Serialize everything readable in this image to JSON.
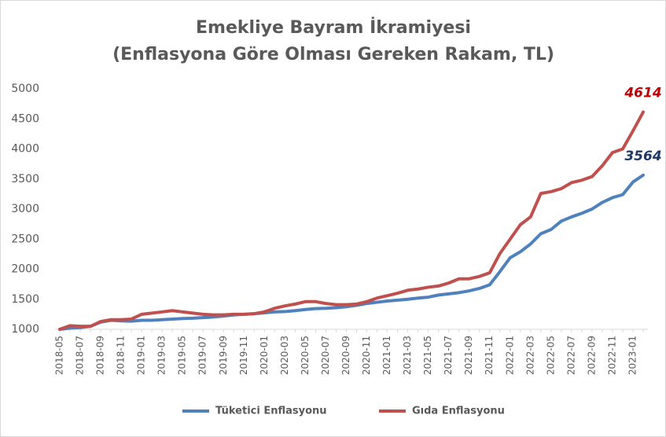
{
  "chart_data": {
    "type": "line",
    "title": "Emekliye Bayram İkramiyesi",
    "subtitle": "(Enflasyona Göre Olması Gereken Rakam, TL)",
    "categories": [
      "2018-05",
      null,
      "2018-07",
      null,
      "2018-09",
      null,
      "2018-11",
      null,
      "2019-01",
      null,
      "2019-03",
      null,
      "2019-05",
      null,
      "2019-07",
      null,
      "2019-09",
      null,
      "2019-11",
      null,
      "2020-01",
      null,
      "2020-03",
      null,
      "2020-05",
      null,
      "2020-07",
      null,
      "2020-09",
      null,
      "2020-11",
      null,
      "2021-01",
      null,
      "2021-03",
      null,
      "2021-05",
      null,
      "2021-07",
      null,
      "2021-09",
      null,
      "2021-11",
      null,
      "2022-01",
      null,
      "2022-03",
      null,
      "2022-05",
      null,
      "2022-07",
      null,
      "2022-09",
      null,
      "2022-11",
      null,
      "2023-01",
      null
    ],
    "series": [
      {
        "name": "Tüketici Enflasyonu",
        "color": "#4f81bd",
        "label_color": "#1f3864",
        "values": [
          1000,
          1020,
          1030,
          1050,
          1120,
          1150,
          1140,
          1135,
          1150,
          1150,
          1160,
          1170,
          1180,
          1185,
          1195,
          1205,
          1220,
          1240,
          1250,
          1260,
          1275,
          1290,
          1295,
          1310,
          1330,
          1345,
          1350,
          1360,
          1375,
          1400,
          1430,
          1450,
          1470,
          1485,
          1500,
          1520,
          1535,
          1570,
          1590,
          1610,
          1640,
          1680,
          1740,
          1960,
          2190,
          2290,
          2420,
          2590,
          2660,
          2800,
          2870,
          2930,
          3000,
          3110,
          3190,
          3240,
          3450,
          3564
        ]
      },
      {
        "name": "Gıda Enflasyonu",
        "color": "#c0504d",
        "label_color": "#c00000",
        "values": [
          1000,
          1060,
          1050,
          1050,
          1130,
          1160,
          1160,
          1170,
          1250,
          1270,
          1290,
          1310,
          1290,
          1270,
          1250,
          1240,
          1240,
          1250,
          1250,
          1260,
          1290,
          1350,
          1390,
          1420,
          1460,
          1460,
          1430,
          1410,
          1410,
          1420,
          1460,
          1520,
          1560,
          1600,
          1650,
          1670,
          1700,
          1720,
          1770,
          1840,
          1840,
          1880,
          1940,
          2260,
          2500,
          2740,
          2870,
          3260,
          3290,
          3340,
          3440,
          3480,
          3540,
          3720,
          3940,
          4000,
          4300,
          4614
        ]
      }
    ],
    "ylim": [
      1000,
      5000
    ],
    "yticks": [
      1000,
      1500,
      2000,
      2500,
      3000,
      3500,
      4000,
      4500,
      5000
    ],
    "grid": false,
    "legend": "bottom"
  }
}
